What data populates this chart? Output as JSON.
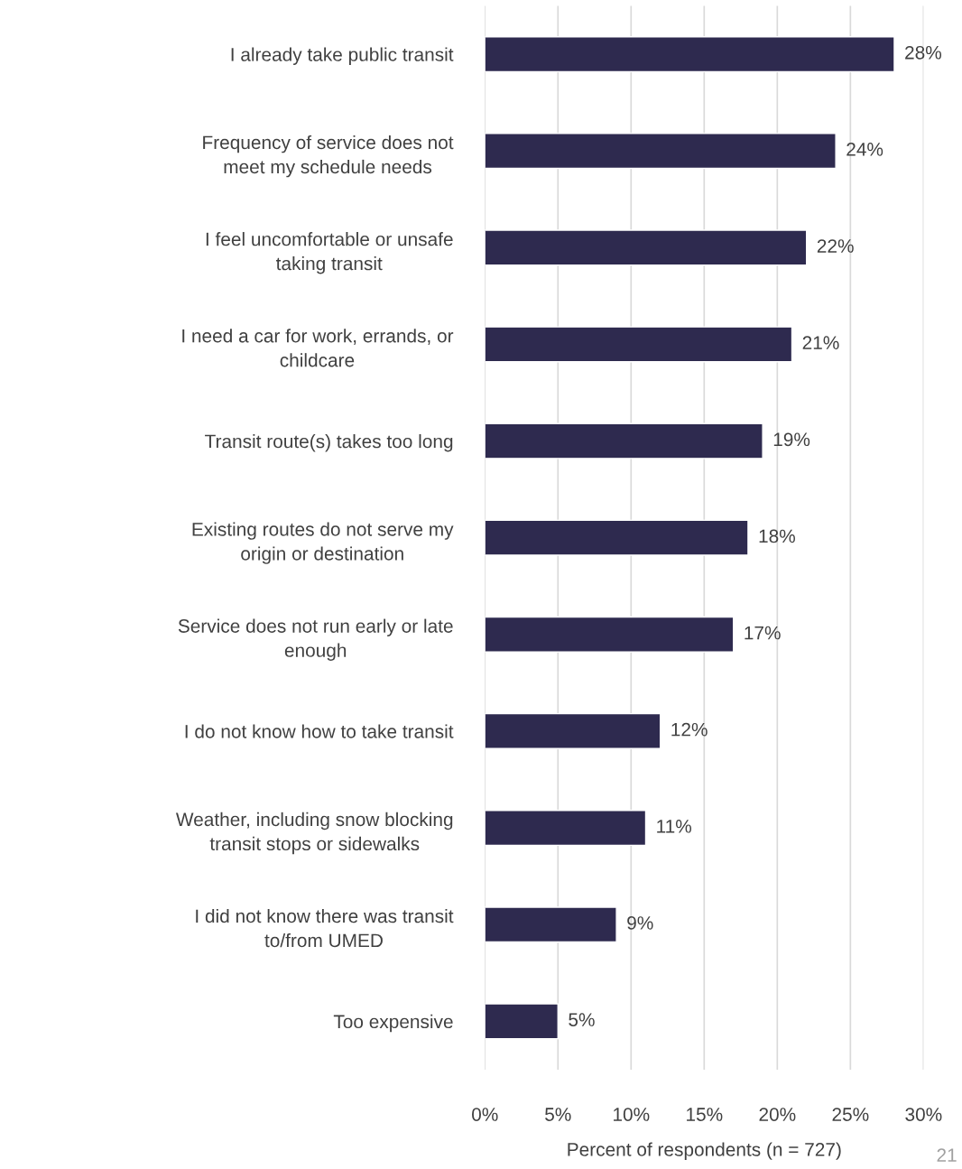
{
  "chart_data": {
    "type": "bar",
    "orientation": "horizontal",
    "xlabel": "Percent of respondents (n = 727)",
    "categories": [
      "I already take public transit",
      "Frequency of service does not meet my schedule needs",
      "I feel uncomfortable or unsafe taking transit",
      "I need a car for work, errands, or childcare",
      "Transit route(s) takes too long",
      "Existing routes do not serve my origin or destination",
      "Service does not run early or late enough",
      "I do not know how to take transit",
      "Weather, including snow blocking transit stops or sidewalks",
      "I did not know there was transit to/from UMED",
      "Too expensive"
    ],
    "values": [
      28,
      24,
      22,
      21,
      19,
      18,
      17,
      12,
      11,
      9,
      5
    ],
    "value_labels": [
      "28%",
      "24%",
      "22%",
      "21%",
      "19%",
      "18%",
      "17%",
      "12%",
      "11%",
      "9%",
      "5%"
    ],
    "color": "#2e2a4f",
    "xlim": [
      0,
      30
    ],
    "xticks": [
      {
        "value": 0,
        "label": "0%"
      },
      {
        "value": 5,
        "label": "5%"
      },
      {
        "value": 10,
        "label": "10%"
      },
      {
        "value": 15,
        "label": "15%"
      },
      {
        "value": 20,
        "label": "20%"
      },
      {
        "value": 25,
        "label": "25%"
      },
      {
        "value": 30,
        "label": "30%"
      }
    ],
    "grid": "x",
    "legend": false,
    "annotations": [
      "21"
    ]
  }
}
